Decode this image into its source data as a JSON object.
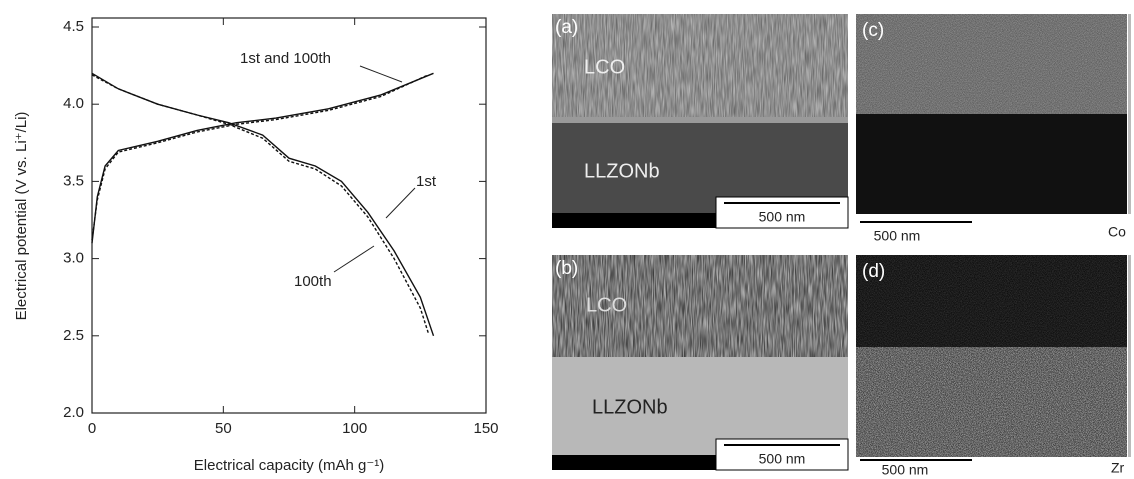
{
  "chart_data": {
    "type": "line",
    "x_label": "Electrical capacity (mAh g⁻¹)",
    "y_label": "Electrical potential (V vs. Li⁺/Li)",
    "annotations": [
      "1st and 100th",
      "1st",
      "100th"
    ],
    "xlim": [
      0,
      150
    ],
    "xticks": [
      0,
      50,
      100,
      150
    ],
    "ylim": [
      2.0,
      4.5
    ],
    "yticks": [
      {
        "value": 2.0,
        "label": "2.0"
      },
      {
        "value": 2.5,
        "label": "2.5"
      },
      {
        "value": 3.0,
        "label": "3.0"
      },
      {
        "value": 3.5,
        "label": "3.5"
      },
      {
        "value": 4.0,
        "label": "4.0"
      },
      {
        "value": 4.5,
        "label": "4.5"
      }
    ],
    "series": [
      {
        "color": "#111",
        "dash": false,
        "x": [
          0,
          2,
          5,
          10,
          15,
          25,
          40,
          55,
          70,
          90,
          110,
          130,
          null,
          0,
          10,
          25,
          40,
          52,
          65,
          75,
          85,
          95,
          105,
          115,
          125,
          130
        ],
        "values": [
          3.1,
          3.4,
          3.6,
          3.7,
          3.72,
          3.76,
          3.83,
          3.88,
          3.91,
          3.97,
          4.06,
          4.2,
          null,
          4.2,
          4.1,
          4.0,
          3.93,
          3.88,
          3.8,
          3.65,
          3.6,
          3.5,
          3.3,
          3.05,
          2.75,
          2.5
        ]
      },
      {
        "color": "#111",
        "dash": true,
        "x": [
          0,
          2,
          5,
          10,
          15,
          25,
          40,
          55,
          70,
          90,
          110,
          128,
          null,
          0,
          10,
          25,
          40,
          52,
          65,
          75,
          85,
          95,
          105,
          115,
          125,
          128
        ],
        "values": [
          3.12,
          3.38,
          3.58,
          3.69,
          3.71,
          3.75,
          3.82,
          3.87,
          3.9,
          3.96,
          4.05,
          4.19,
          null,
          4.19,
          4.1,
          4.0,
          3.93,
          3.87,
          3.78,
          3.63,
          3.58,
          3.47,
          3.27,
          3.0,
          2.68,
          2.52
        ]
      }
    ]
  },
  "panels": [
    {
      "label": "(a)",
      "layers": [
        "LCO",
        "LLZONb"
      ],
      "scale": "500 nm"
    },
    {
      "label": "(b)",
      "layers": [
        "LCO",
        "LLZONb"
      ],
      "scale": "500 nm"
    },
    {
      "label": "(c)",
      "scale": "500 nm",
      "element": "Co"
    },
    {
      "label": "(d)",
      "scale": "500 nm",
      "element": "Zr"
    }
  ]
}
